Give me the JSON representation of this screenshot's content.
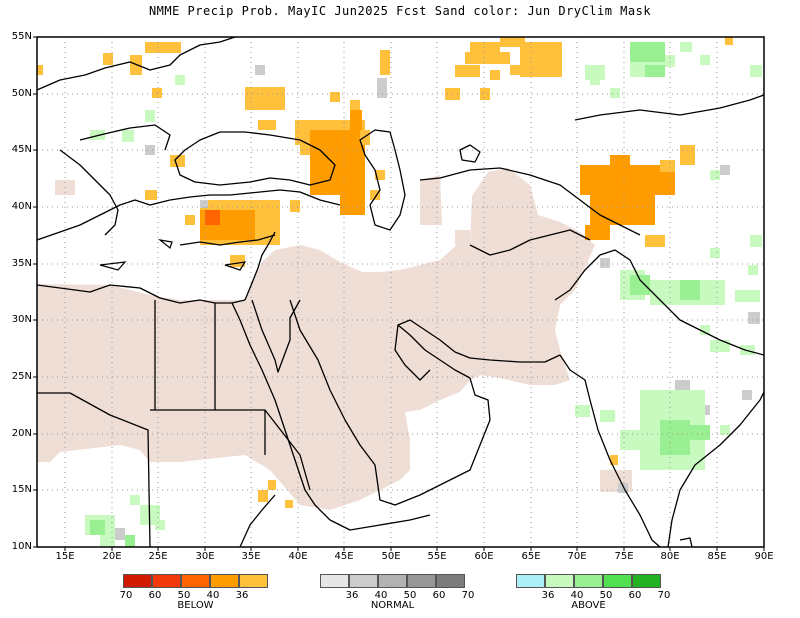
{
  "title": "NMME Precip Prob. MayIC  Jun2025 Fcst  Sand color: Jun DryClim Mask",
  "map": {
    "lat_labels": [
      "55N",
      "50N",
      "45N",
      "40N",
      "35N",
      "30N",
      "25N",
      "20N",
      "15N",
      "10N"
    ],
    "lon_labels": [
      "15E",
      "20E",
      "25E",
      "30E",
      "35E",
      "40E",
      "45E",
      "50E",
      "55E",
      "60E",
      "65E",
      "70E",
      "75E",
      "80E",
      "85E",
      "90E"
    ],
    "lat_range": [
      10,
      55
    ],
    "lon_range": [
      12,
      90
    ],
    "grid": "dotted",
    "colors": {
      "dry_mask": "#efded5",
      "land_outline": "#000000",
      "missing": "#bdbdbd"
    }
  },
  "legends": [
    {
      "name": "BELOW",
      "colors": [
        "#d01a02",
        "#f03a0a",
        "#ff6400",
        "#ff9d00",
        "#ffc03c"
      ],
      "tick_labels": [
        "70",
        "60",
        "50",
        "40",
        "36"
      ]
    },
    {
      "name": "NORMAL",
      "colors": [
        "#e6e6e6",
        "#cccccc",
        "#b2b2b2",
        "#969696",
        "#7c7c7c"
      ],
      "tick_labels": [
        "36",
        "40",
        "50",
        "60",
        "70"
      ]
    },
    {
      "name": "ABOVE",
      "colors": [
        "#aeeef8",
        "#c8fac0",
        "#98f092",
        "#52e052",
        "#22b222"
      ],
      "tick_labels": [
        "36",
        "40",
        "50",
        "60",
        "70"
      ]
    }
  ]
}
